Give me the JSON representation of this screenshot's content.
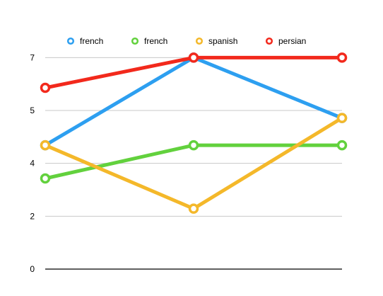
{
  "chart_data": {
    "type": "line",
    "title": "",
    "xlabel": "",
    "ylabel": "",
    "x": [
      0,
      1,
      2
    ],
    "ylim": [
      0,
      7.5
    ],
    "yticks": [
      0,
      2,
      4,
      5,
      7
    ],
    "ytick_positions": [
      0,
      1.75,
      3.5,
      5.25,
      7.0
    ],
    "grid": true,
    "legend_placement": "top",
    "series": [
      {
        "name": "french",
        "color": "#2d9ff0",
        "values": [
          4.1,
          7.0,
          5.0
        ]
      },
      {
        "name": "french",
        "color": "#62d13d",
        "values": [
          3.0,
          4.1,
          4.1
        ]
      },
      {
        "name": "spanish",
        "color": "#f4b82a",
        "values": [
          4.1,
          2.0,
          5.0
        ]
      },
      {
        "name": "persian",
        "color": "#f2291c",
        "values": [
          6.0,
          7.0,
          7.0
        ]
      }
    ]
  }
}
